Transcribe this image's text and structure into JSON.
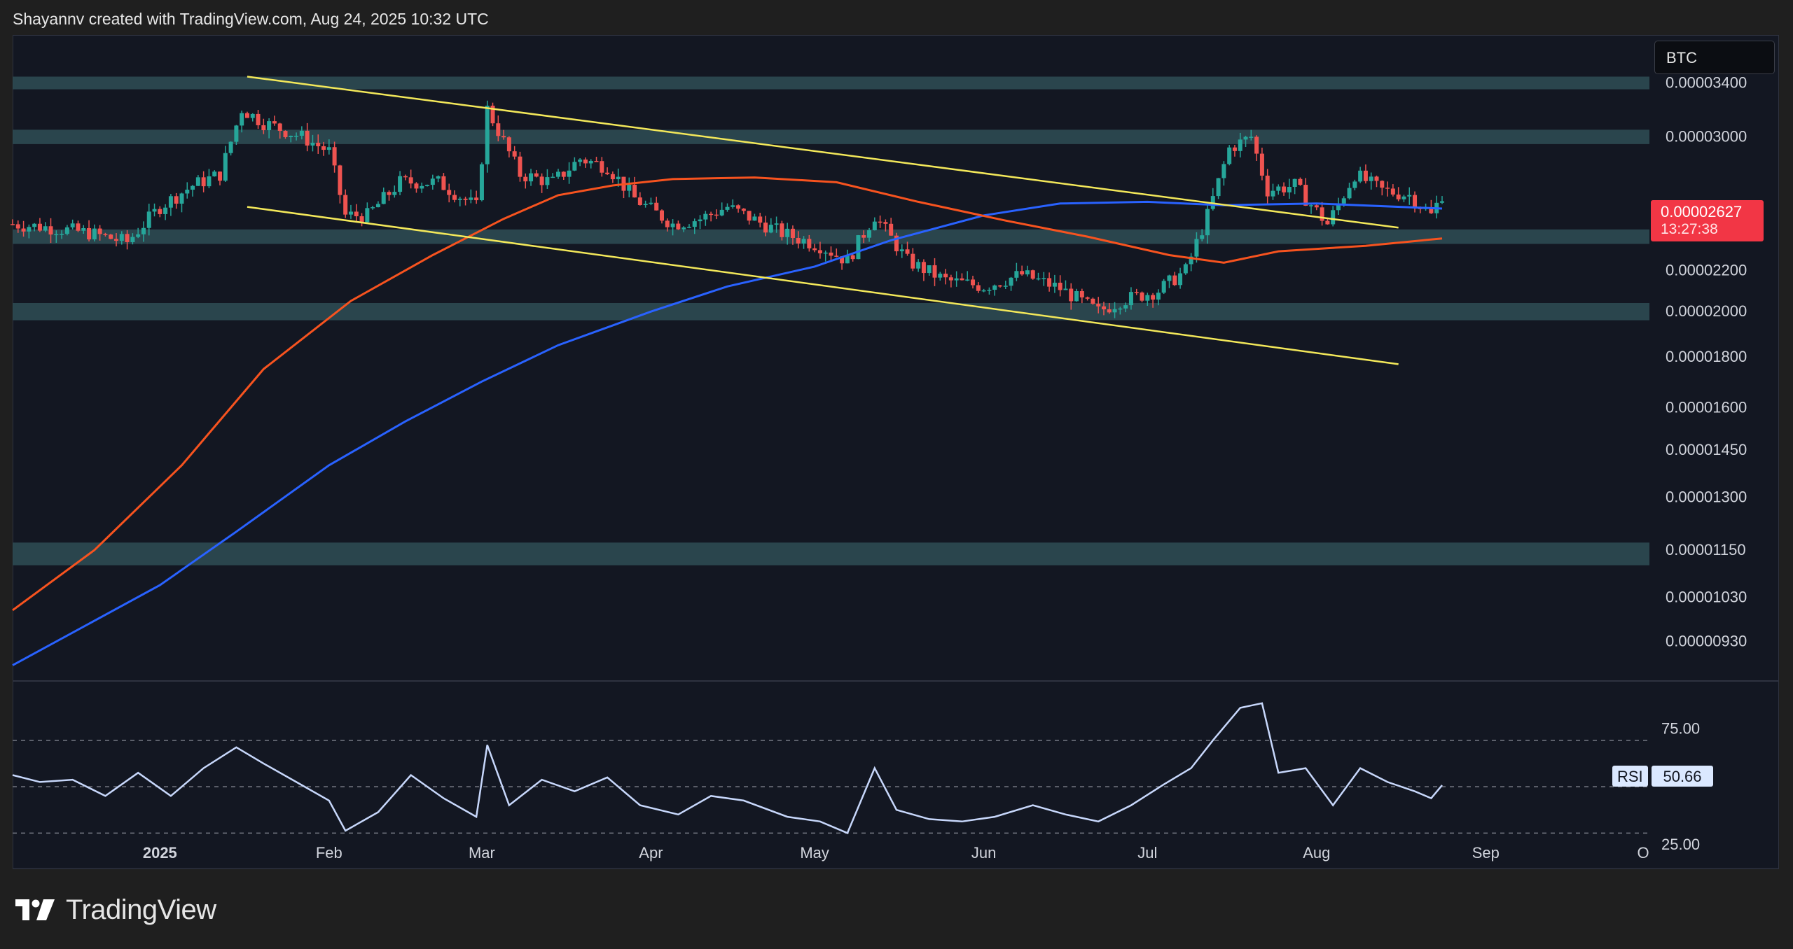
{
  "header": {
    "attribution": "Shayannv created with TradingView.com, Aug 24, 2025 10:32 UTC"
  },
  "symbol": "BTC",
  "price_tag": {
    "value": "0.00002627",
    "countdown": "13:27:38"
  },
  "rsi": {
    "label": "RSI",
    "value": "50.66"
  },
  "footer": {
    "brand": "TradingView",
    "logo_icon": "tradingview-logo-icon"
  },
  "colors": {
    "background": "#131722",
    "up": "#26a69a",
    "down": "#ef5350",
    "ema_orange": "#f7531f",
    "ma_blue": "#2962ff",
    "trendline": "#f3e85a",
    "zone": "#2e4a52",
    "rsi_line": "#c7d7fb",
    "price_tag": "#f23645"
  },
  "chart_data": [
    {
      "type": "candlestick",
      "title": "BTC",
      "y_scale": "log",
      "ylim": [
        8.5e-06,
        3.8e-05
      ],
      "y_ticks": [
        "0.00003400",
        "0.00003000",
        "0.00002200",
        "0.00002000",
        "0.00001800",
        "0.00001600",
        "0.00001450",
        "0.00001300",
        "0.00001150",
        "0.00001030",
        "0.00000930"
      ],
      "x_ticks": [
        "2025",
        "Feb",
        "Mar",
        "Apr",
        "May",
        "Jun",
        "Jul",
        "Aug",
        "Sep",
        "O"
      ],
      "xlim": [
        "2024-12-05",
        "2025-10-01"
      ],
      "last_price": 2.627e-05,
      "zones": [
        {
          "from": 3.35e-05,
          "to": 3.45e-05
        },
        {
          "from": 2.95e-05,
          "to": 3.05e-05
        },
        {
          "from": 2.34e-05,
          "to": 2.42e-05
        },
        {
          "from": 1.96e-05,
          "to": 2.04e-05
        },
        {
          "from": 1.11e-05,
          "to": 1.17e-05
        }
      ],
      "trendlines": [
        {
          "x1": "2025-01-17",
          "y1": 3.45e-05,
          "x2": "2025-08-16",
          "y2": 2.43e-05
        },
        {
          "x1": "2025-01-17",
          "y1": 2.55e-05,
          "x2": "2025-08-16",
          "y2": 1.77e-05
        }
      ],
      "close_path": [
        [
          "2024-12-05",
          2.45e-05
        ],
        [
          "2024-12-12",
          2.43e-05
        ],
        [
          "2024-12-19",
          2.4e-05
        ],
        [
          "2024-12-26",
          2.35e-05
        ],
        [
          "2025-01-01",
          2.55e-05
        ],
        [
          "2025-01-07",
          2.68e-05
        ],
        [
          "2025-01-12",
          2.75e-05
        ],
        [
          "2025-01-16",
          3.2e-05
        ],
        [
          "2025-01-20",
          3.1e-05
        ],
        [
          "2025-01-27",
          3e-05
        ],
        [
          "2025-02-01",
          2.9e-05
        ],
        [
          "2025-02-04",
          2.5e-05
        ],
        [
          "2025-02-08",
          2.5e-05
        ],
        [
          "2025-02-14",
          2.7e-05
        ],
        [
          "2025-02-21",
          2.7e-05
        ],
        [
          "2025-02-28",
          2.55e-05
        ],
        [
          "2025-03-02",
          3.2e-05
        ],
        [
          "2025-03-08",
          2.75e-05
        ],
        [
          "2025-03-14",
          2.7e-05
        ],
        [
          "2025-03-19",
          2.85e-05
        ],
        [
          "2025-03-24",
          2.8e-05
        ],
        [
          "2025-03-29",
          2.6e-05
        ],
        [
          "2025-04-05",
          2.45e-05
        ],
        [
          "2025-04-10",
          2.48e-05
        ],
        [
          "2025-04-15",
          2.55e-05
        ],
        [
          "2025-04-25",
          2.4e-05
        ],
        [
          "2025-05-02",
          2.33e-05
        ],
        [
          "2025-05-07",
          2.25e-05
        ],
        [
          "2025-05-12",
          2.5e-05
        ],
        [
          "2025-05-18",
          2.25e-05
        ],
        [
          "2025-05-25",
          2.15e-05
        ],
        [
          "2025-06-01",
          2.12e-05
        ],
        [
          "2025-06-08",
          2.18e-05
        ],
        [
          "2025-06-15",
          2.11e-05
        ],
        [
          "2025-06-22",
          2e-05
        ],
        [
          "2025-06-26",
          2.05e-05
        ],
        [
          "2025-07-03",
          2.1e-05
        ],
        [
          "2025-07-08",
          2.2e-05
        ],
        [
          "2025-07-12",
          2.5e-05
        ],
        [
          "2025-07-16",
          2.92e-05
        ],
        [
          "2025-07-20",
          3e-05
        ],
        [
          "2025-07-23",
          2.65e-05
        ],
        [
          "2025-07-28",
          2.68e-05
        ],
        [
          "2025-08-03",
          2.45e-05
        ],
        [
          "2025-08-08",
          2.75e-05
        ],
        [
          "2025-08-13",
          2.65e-05
        ],
        [
          "2025-08-18",
          2.62e-05
        ],
        [
          "2025-08-22",
          2.5e-05
        ],
        [
          "2025-08-24",
          2.627e-05
        ]
      ],
      "ema": [
        [
          "2024-12-05",
          1e-05
        ],
        [
          "2024-12-20",
          1.15e-05
        ],
        [
          "2025-01-05",
          1.4e-05
        ],
        [
          "2025-01-20",
          1.75e-05
        ],
        [
          "2025-02-05",
          2.05e-05
        ],
        [
          "2025-02-20",
          2.28e-05
        ],
        [
          "2025-03-05",
          2.48e-05
        ],
        [
          "2025-03-15",
          2.62e-05
        ],
        [
          "2025-03-25",
          2.68e-05
        ],
        [
          "2025-04-05",
          2.72e-05
        ],
        [
          "2025-04-20",
          2.73e-05
        ],
        [
          "2025-05-05",
          2.7e-05
        ],
        [
          "2025-05-20",
          2.58e-05
        ],
        [
          "2025-06-05",
          2.47e-05
        ],
        [
          "2025-06-20",
          2.38e-05
        ],
        [
          "2025-07-05",
          2.28e-05
        ],
        [
          "2025-07-15",
          2.24e-05
        ],
        [
          "2025-07-25",
          2.3e-05
        ],
        [
          "2025-08-10",
          2.33e-05
        ],
        [
          "2025-08-24",
          2.37e-05
        ]
      ],
      "ma": [
        [
          "2024-12-05",
          8.8e-06
        ],
        [
          "2025-01-01",
          1.06e-05
        ],
        [
          "2025-01-15",
          1.2e-05
        ],
        [
          "2025-02-01",
          1.4e-05
        ],
        [
          "2025-02-15",
          1.55e-05
        ],
        [
          "2025-03-01",
          1.7e-05
        ],
        [
          "2025-03-15",
          1.85e-05
        ],
        [
          "2025-04-01",
          2e-05
        ],
        [
          "2025-04-15",
          2.12e-05
        ],
        [
          "2025-05-01",
          2.22e-05
        ],
        [
          "2025-05-15",
          2.36e-05
        ],
        [
          "2025-06-01",
          2.5e-05
        ],
        [
          "2025-06-15",
          2.57e-05
        ],
        [
          "2025-07-01",
          2.58e-05
        ],
        [
          "2025-07-15",
          2.56e-05
        ],
        [
          "2025-08-01",
          2.57e-05
        ],
        [
          "2025-08-24",
          2.54e-05
        ]
      ]
    },
    {
      "type": "line",
      "title": "RSI",
      "ylim": [
        15,
        95
      ],
      "y_ticks": [
        "75.00",
        "25.00"
      ],
      "reference_lines": [
        70,
        50,
        30
      ],
      "series": [
        {
          "values": [
            [
              "2024-12-05",
              55
            ],
            [
              "2024-12-10",
              52
            ],
            [
              "2024-12-16",
              53
            ],
            [
              "2024-12-22",
              46
            ],
            [
              "2024-12-28",
              56
            ],
            [
              "2025-01-03",
              46
            ],
            [
              "2025-01-09",
              58
            ],
            [
              "2025-01-15",
              67
            ],
            [
              "2025-01-20",
              60
            ],
            [
              "2025-01-26",
              52
            ],
            [
              "2025-02-01",
              44
            ],
            [
              "2025-02-04",
              31
            ],
            [
              "2025-02-10",
              39
            ],
            [
              "2025-02-16",
              55
            ],
            [
              "2025-02-22",
              45
            ],
            [
              "2025-02-28",
              37
            ],
            [
              "2025-03-02",
              68
            ],
            [
              "2025-03-06",
              42
            ],
            [
              "2025-03-12",
              53
            ],
            [
              "2025-03-18",
              48
            ],
            [
              "2025-03-24",
              54
            ],
            [
              "2025-03-30",
              42
            ],
            [
              "2025-04-06",
              38
            ],
            [
              "2025-04-12",
              46
            ],
            [
              "2025-04-18",
              44
            ],
            [
              "2025-04-26",
              37
            ],
            [
              "2025-05-02",
              35
            ],
            [
              "2025-05-07",
              30
            ],
            [
              "2025-05-12",
              58
            ],
            [
              "2025-05-16",
              40
            ],
            [
              "2025-05-22",
              36
            ],
            [
              "2025-05-28",
              35
            ],
            [
              "2025-06-03",
              37
            ],
            [
              "2025-06-10",
              42
            ],
            [
              "2025-06-16",
              38
            ],
            [
              "2025-06-22",
              35
            ],
            [
              "2025-06-28",
              42
            ],
            [
              "2025-07-04",
              51
            ],
            [
              "2025-07-09",
              58
            ],
            [
              "2025-07-13",
              70
            ],
            [
              "2025-07-18",
              84
            ],
            [
              "2025-07-22",
              86
            ],
            [
              "2025-07-25",
              56
            ],
            [
              "2025-07-30",
              58
            ],
            [
              "2025-08-04",
              42
            ],
            [
              "2025-08-09",
              58
            ],
            [
              "2025-08-14",
              52
            ],
            [
              "2025-08-19",
              48
            ],
            [
              "2025-08-22",
              45
            ],
            [
              "2025-08-24",
              50.66
            ]
          ]
        }
      ]
    }
  ]
}
